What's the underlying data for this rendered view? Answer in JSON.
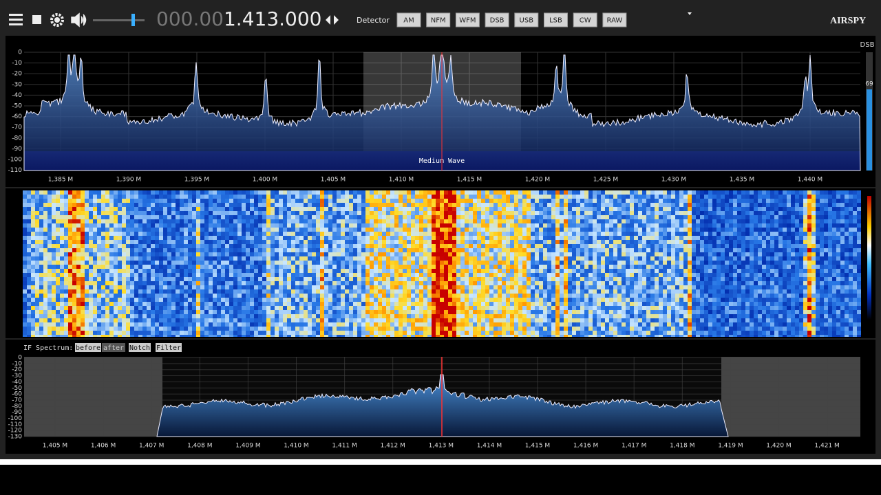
{
  "toolbar": {
    "frequency_dim": "000.00",
    "frequency": "1.413.000",
    "detector_label": "Detector",
    "modes": [
      "AM",
      "NFM",
      "WFM",
      "DSB",
      "USB",
      "LSB",
      "CW",
      "RAW"
    ],
    "logo": "AIRSPY"
  },
  "spectrum": {
    "y_labels": [
      "0",
      "-10",
      "-20",
      "-30",
      "-40",
      "-50",
      "-60",
      "-70",
      "-80",
      "-90",
      "-100",
      "-110"
    ],
    "x_labels": [
      "1,385 M",
      "1,390 M",
      "1,395 M",
      "1,400 M",
      "1,405 M",
      "1,410 M",
      "1,415 M",
      "1,420 M",
      "1,425 M",
      "1,430 M",
      "1,435 M",
      "1,440 M"
    ],
    "band_name": "Medium Wave",
    "meter_mode": "DSB",
    "meter_value": "69"
  },
  "if_spectrum": {
    "title": "IF Spectrum:",
    "buttons": [
      "before",
      "after",
      "Notch",
      "Filter"
    ],
    "y_labels": [
      "0",
      "-10",
      "-20",
      "-30",
      "-40",
      "-50",
      "-60",
      "-70",
      "-80",
      "-90",
      "-100",
      "-110",
      "-120",
      "-130"
    ],
    "x_labels": [
      "1,405 M",
      "1,406 M",
      "1,407 M",
      "1,408 M",
      "1,409 M",
      "1,410 M",
      "1,411 M",
      "1,412 M",
      "1,413 M",
      "1,414 M",
      "1,415 M",
      "1,416 M",
      "1,417 M",
      "1,418 M",
      "1,419 M",
      "1,420 M",
      "1,421 M"
    ]
  }
}
